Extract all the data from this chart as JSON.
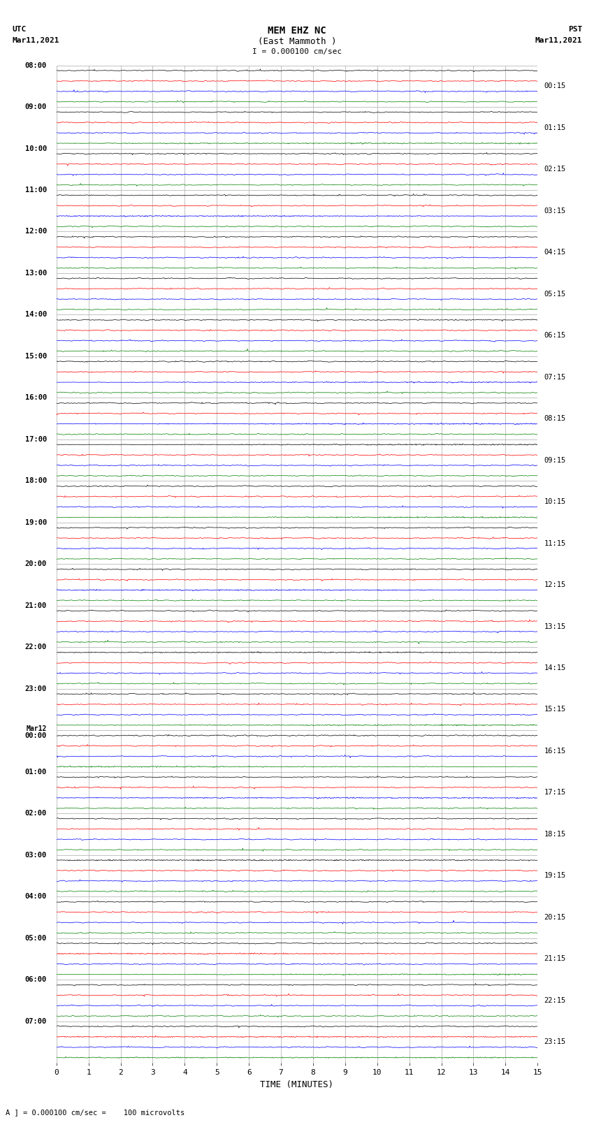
{
  "title_line1": "MEM EHZ NC",
  "title_line2": "(East Mammoth )",
  "title_line3": "I = 0.000100 cm/sec",
  "label_utc": "UTC",
  "label_pst": "PST",
  "label_date_left": "Mar11,2021",
  "label_date_right": "Mar11,2021",
  "xlabel": "TIME (MINUTES)",
  "footer": "A ] = 0.000100 cm/sec =    100 microvolts",
  "left_times": [
    "08:00",
    "09:00",
    "10:00",
    "11:00",
    "12:00",
    "13:00",
    "14:00",
    "15:00",
    "16:00",
    "17:00",
    "18:00",
    "19:00",
    "20:00",
    "21:00",
    "22:00",
    "23:00",
    "Mar12\n00:00",
    "01:00",
    "02:00",
    "03:00",
    "04:00",
    "05:00",
    "06:00",
    "07:00"
  ],
  "right_times": [
    "00:15",
    "01:15",
    "02:15",
    "03:15",
    "04:15",
    "05:15",
    "06:15",
    "07:15",
    "08:15",
    "09:15",
    "10:15",
    "11:15",
    "12:15",
    "13:15",
    "14:15",
    "15:15",
    "16:15",
    "17:15",
    "18:15",
    "19:15",
    "20:15",
    "21:15",
    "22:15",
    "23:15"
  ],
  "n_rows": 24,
  "traces_per_row": 4,
  "colors": [
    "black",
    "red",
    "blue",
    "green"
  ],
  "grid_color": "#aaaaaa",
  "xlim": [
    0,
    15
  ],
  "bg_color": "white",
  "fig_width": 8.5,
  "fig_height": 16.13,
  "dpi": 100,
  "noise_scale": 0.06,
  "trace_amplitude": 0.4
}
